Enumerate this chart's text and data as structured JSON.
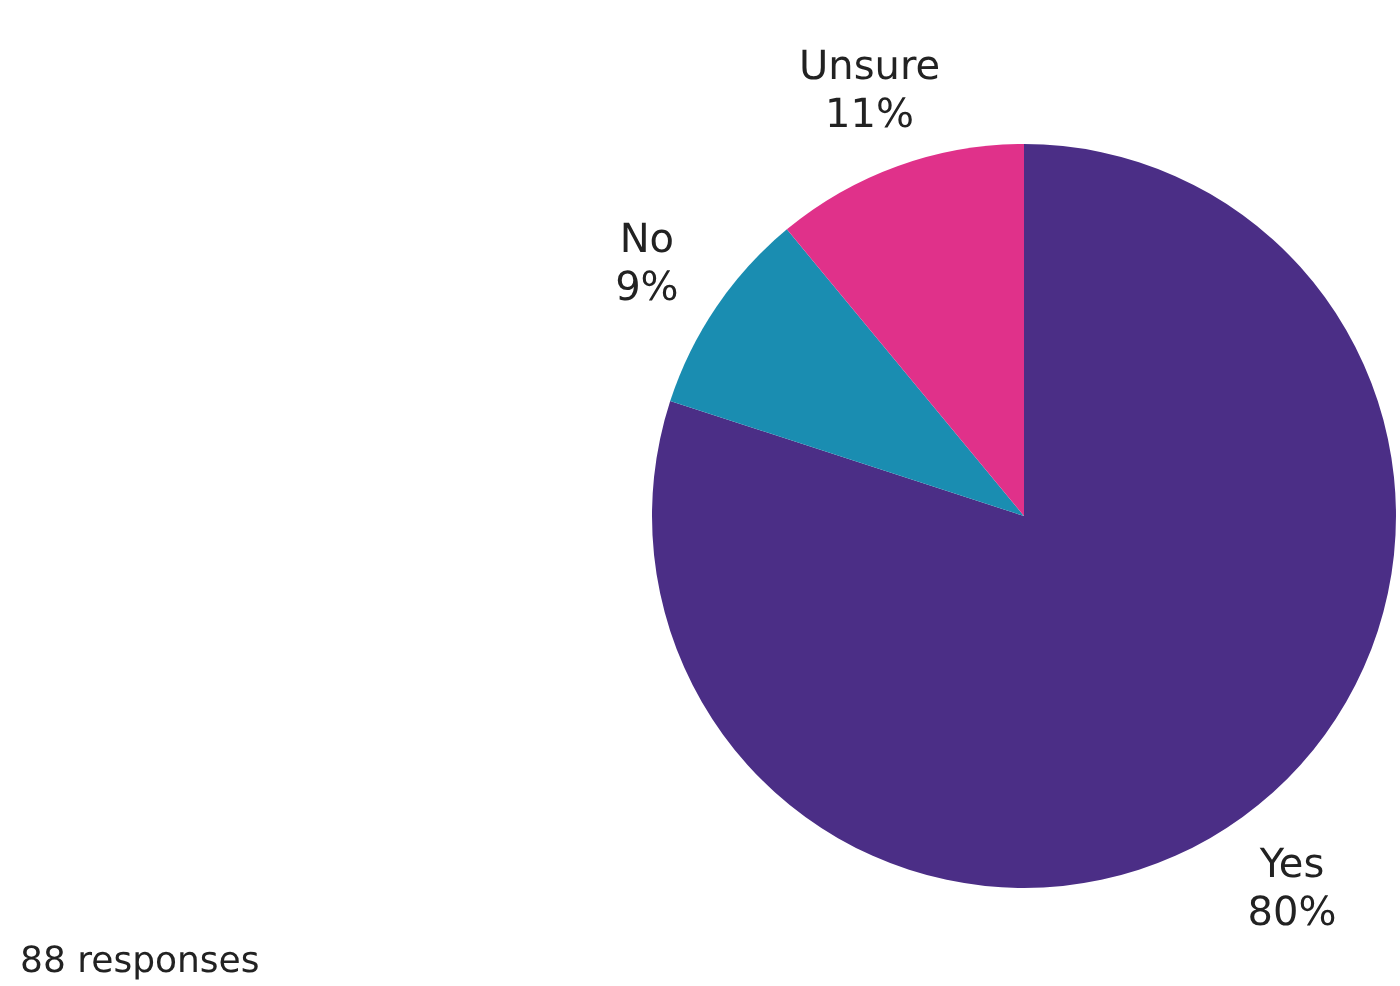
{
  "chart_data": {
    "type": "pie",
    "categories": [
      "Yes",
      "No",
      "Unsure"
    ],
    "values": [
      80,
      9,
      11
    ],
    "colors": [
      "#4b2e86",
      "#1a8db1",
      "#e0318a"
    ],
    "value_labels": [
      "80%",
      "9%",
      "11%"
    ],
    "annotations": [
      "88 responses"
    ],
    "legend": false
  }
}
